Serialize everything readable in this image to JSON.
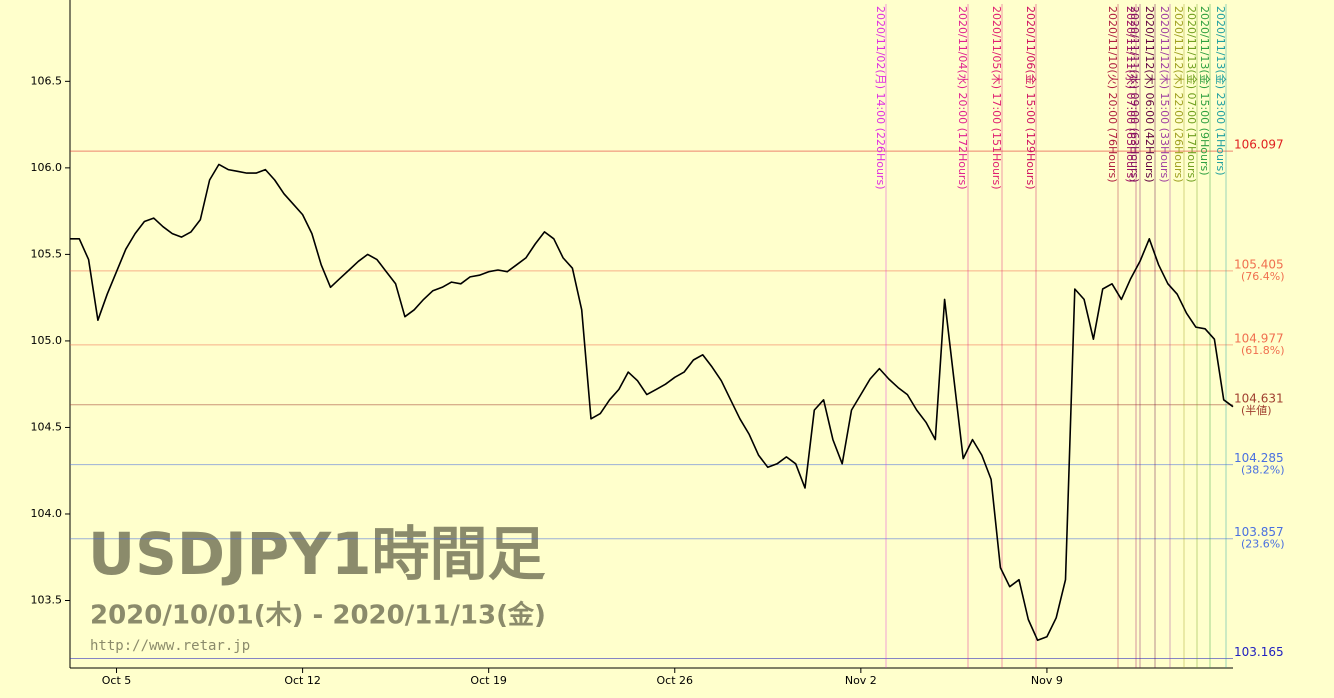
{
  "chart_data": {
    "type": "line",
    "title": "USDJPY1時間足",
    "subtitle": "2020/10/01(木) - 2020/11/13(金)",
    "source": "http://www.retar.jp",
    "color": "#000000",
    "categories": [
      null,
      null,
      null,
      null,
      null,
      "Oct 5",
      null,
      null,
      null,
      null,
      null,
      null,
      null,
      null,
      null,
      null,
      null,
      null,
      null,
      null,
      null,
      null,
      null,
      null,
      null,
      "Oct 12",
      null,
      null,
      null,
      null,
      null,
      null,
      null,
      null,
      null,
      null,
      null,
      null,
      null,
      null,
      null,
      null,
      null,
      null,
      null,
      "Oct 19",
      null,
      null,
      null,
      null,
      null,
      null,
      null,
      null,
      null,
      null,
      null,
      null,
      null,
      null,
      null,
      null,
      null,
      null,
      null,
      "Oct 26",
      null,
      null,
      null,
      null,
      null,
      null,
      null,
      null,
      null,
      null,
      null,
      null,
      null,
      null,
      null,
      null,
      null,
      null,
      null,
      "Nov 2",
      null,
      null,
      null,
      null,
      null,
      null,
      null,
      null,
      null,
      null,
      null,
      null,
      null,
      null,
      null,
      null,
      null,
      null,
      null,
      "Nov 9",
      null,
      null,
      null,
      null,
      null,
      null,
      null,
      null,
      null,
      null,
      null,
      null,
      null,
      null,
      null,
      null,
      null,
      null,
      null,
      null
    ],
    "values": [
      105.59,
      105.59,
      105.47,
      105.12,
      105.27,
      105.4,
      105.53,
      105.62,
      105.69,
      105.71,
      105.66,
      105.62,
      105.6,
      105.63,
      105.7,
      105.93,
      106.02,
      105.99,
      105.98,
      105.97,
      105.97,
      105.99,
      105.93,
      105.85,
      105.79,
      105.73,
      105.62,
      105.44,
      105.31,
      105.36,
      105.41,
      105.46,
      105.5,
      105.47,
      105.4,
      105.33,
      105.14,
      105.18,
      105.24,
      105.29,
      105.31,
      105.34,
      105.33,
      105.37,
      105.38,
      105.4,
      105.41,
      105.4,
      105.44,
      105.48,
      105.56,
      105.63,
      105.59,
      105.48,
      105.42,
      105.18,
      104.55,
      104.58,
      104.66,
      104.72,
      104.82,
      104.77,
      104.69,
      104.72,
      104.75,
      104.79,
      104.82,
      104.89,
      104.92,
      104.85,
      104.77,
      104.66,
      104.55,
      104.46,
      104.34,
      104.27,
      104.29,
      104.33,
      104.29,
      104.15,
      104.6,
      104.66,
      104.43,
      104.29,
      104.6,
      104.69,
      104.78,
      104.84,
      104.78,
      104.73,
      104.69,
      104.6,
      104.53,
      104.43,
      105.24,
      104.78,
      104.32,
      104.43,
      104.34,
      104.2,
      103.69,
      103.58,
      103.62,
      103.39,
      103.27,
      103.29,
      103.4,
      103.62,
      105.3,
      105.24,
      105.01,
      105.3,
      105.33,
      105.24,
      105.36,
      105.46,
      105.59,
      105.44,
      105.33,
      105.27,
      105.16,
      105.08,
      105.07,
      105.01,
      104.66,
      104.62
    ],
    "ylim": [
      103.11,
      106.97
    ],
    "yticks": [
      103.5,
      {
        "value": 104,
        "label": "104.0"
      },
      104.5,
      {
        "value": 105,
        "label": "105.0"
      },
      105.5,
      {
        "value": 106,
        "label": "106.0"
      },
      106.5
    ],
    "levels": [
      {
        "value": 106.097,
        "color": "#e02020"
      },
      {
        "value": 105.405,
        "sublabel": "(76.4%)",
        "color": "#f07050"
      },
      {
        "value": 104.977,
        "sublabel": "(61.8%)",
        "color": "#f07050"
      },
      {
        "value": 104.631,
        "sublabel": "(半値)",
        "color": "#a04030"
      },
      {
        "value": 104.285,
        "sublabel": "(38.2%)",
        "color": "#4a70e0"
      },
      {
        "value": 103.857,
        "sublabel": "(23.6%)",
        "color": "#4a70e0"
      },
      {
        "value": 103.165,
        "color": "#2020c0"
      }
    ],
    "markers": [
      {
        "label": "2020/11/02(月) 14:00 (226Hours)",
        "color": "#e030e0"
      },
      {
        "label": "2020/11/04(水) 20:00 (172Hours)",
        "color": "#e02090"
      },
      {
        "label": "2020/11/05(木) 17:00 (151Hours)",
        "color": "#e02070"
      },
      {
        "label": "2020/11/06(金) 15:00 (129Hours)",
        "color": "#d01060"
      },
      {
        "label": "2020/11/10(火) 20:00 (76Hours)",
        "color": "#b02040"
      },
      {
        "label": "2020/11/11(水) 07:00 (65Hours)",
        "color": "#a01060"
      },
      {
        "label": "2020/11/11(水) 09:00 (63Hours)",
        "color": "#801060"
      },
      {
        "label": "2020/11/12(木) 06:00 (42Hours)",
        "color": "#600040"
      },
      {
        "label": "2020/11/12(木) 15:00 (33Hours)",
        "color": "#a040a0"
      },
      {
        "label": "2020/11/12(木) 22:00 (26Hours)",
        "color": "#a0a020"
      },
      {
        "label": "2020/11/13(金) 07:00 (17Hours)",
        "color": "#70a020"
      },
      {
        "label": "2020/11/13(金) 15:00 (9Hours)",
        "color": "#30a040"
      },
      {
        "label": "2020/11/13(金) 23:00 (1Hours)",
        "color": "#20a0a0"
      }
    ]
  }
}
